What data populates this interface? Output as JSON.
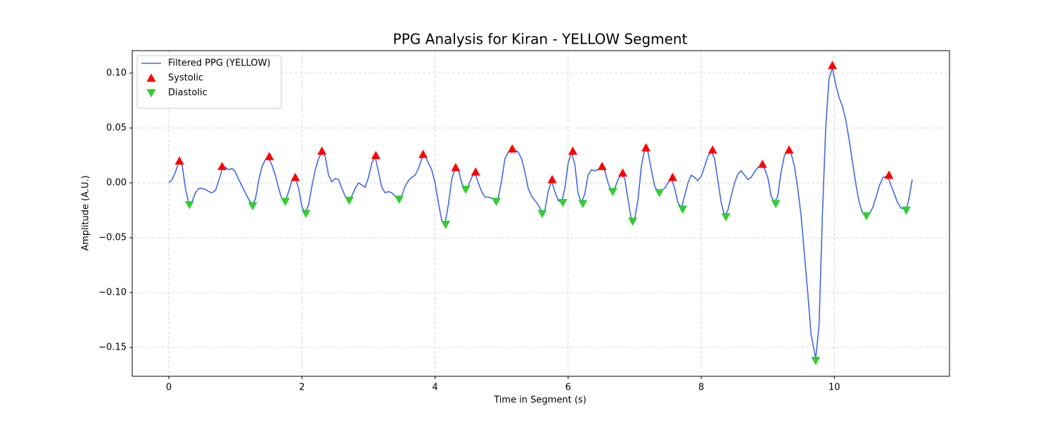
{
  "chart_data": {
    "type": "line",
    "title": "PPG Analysis for Kiran - YELLOW Segment",
    "x_label": "Time in Segment (s)",
    "y_label": "Amplitude (A.U.)",
    "xlim": [
      -0.55,
      11.73
    ],
    "ylim": [
      -0.1763,
      0.1205
    ],
    "xticks": [
      0,
      2,
      4,
      6,
      8,
      10
    ],
    "yticks": [
      {
        "value": -0.15,
        "label": "−0.15"
      },
      {
        "value": -0.1,
        "label": "−0.10"
      },
      {
        "value": -0.05,
        "label": "−0.05"
      },
      {
        "value": 0,
        "label": "0.00"
      },
      {
        "value": 0.05,
        "label": "0.05"
      },
      {
        "value": 0.1,
        "label": "0.10"
      }
    ],
    "grid": true,
    "legend": "upper left",
    "series": [
      {
        "name": "Filtered PPG (YELLOW)",
        "color": "#4169e1",
        "style": "line",
        "x": [
          0,
          0.05,
          0.1,
          0.15,
          0.2,
          0.25,
          0.3,
          0.35,
          0.4,
          0.45,
          0.5,
          0.55,
          0.6,
          0.65,
          0.7,
          0.75,
          0.8,
          0.85,
          0.9,
          0.95,
          1.0,
          1.05,
          1.1,
          1.15,
          1.2,
          1.25,
          1.3,
          1.35,
          1.4,
          1.45,
          1.5,
          1.55,
          1.6,
          1.65,
          1.7,
          1.75,
          1.8,
          1.85,
          1.9,
          1.95,
          2.0,
          2.05,
          2.1,
          2.15,
          2.2,
          2.25,
          2.3,
          2.35,
          2.4,
          2.45,
          2.5,
          2.55,
          2.6,
          2.65,
          2.7,
          2.75,
          2.8,
          2.85,
          2.9,
          2.95,
          3.0,
          3.05,
          3.1,
          3.15,
          3.2,
          3.25,
          3.3,
          3.35,
          3.4,
          3.45,
          3.5,
          3.55,
          3.6,
          3.65,
          3.7,
          3.75,
          3.8,
          3.85,
          3.9,
          3.95,
          4.0,
          4.05,
          4.1,
          4.15,
          4.2,
          4.25,
          4.3,
          4.35,
          4.4,
          4.45,
          4.5,
          4.55,
          4.6,
          4.65,
          4.7,
          4.75,
          4.8,
          4.85,
          4.9,
          4.95,
          5.0,
          5.05,
          5.1,
          5.15,
          5.2,
          5.25,
          5.3,
          5.35,
          5.4,
          5.45,
          5.5,
          5.55,
          5.6,
          5.65,
          5.7,
          5.75,
          5.8,
          5.85,
          5.9,
          5.95,
          6.0,
          6.05,
          6.1,
          6.15,
          6.2,
          6.25,
          6.3,
          6.35,
          6.4,
          6.45,
          6.5,
          6.55,
          6.6,
          6.65,
          6.7,
          6.75,
          6.8,
          6.85,
          6.9,
          6.95,
          7.0,
          7.05,
          7.1,
          7.15,
          7.2,
          7.25,
          7.3,
          7.35,
          7.4,
          7.45,
          7.5,
          7.55,
          7.6,
          7.65,
          7.7,
          7.75,
          7.8,
          7.85,
          7.9,
          7.95,
          8.0,
          8.05,
          8.1,
          8.15,
          8.2,
          8.25,
          8.3,
          8.35,
          8.4,
          8.45,
          8.5,
          8.55,
          8.6,
          8.65,
          8.7,
          8.75,
          8.8,
          8.85,
          8.9,
          8.95,
          9.0,
          9.05,
          9.1,
          9.15,
          9.2,
          9.25,
          9.3,
          9.35,
          9.4,
          9.45,
          9.5,
          9.55,
          9.6,
          9.65,
          9.72,
          9.77,
          9.82,
          9.87,
          9.92,
          9.97,
          10.02,
          10.07,
          10.12,
          10.17,
          10.22,
          10.27,
          10.32,
          10.37,
          10.42,
          10.48,
          10.53,
          10.58,
          10.63,
          10.68,
          10.73,
          10.8,
          10.85,
          10.9,
          10.95,
          11.0,
          11.08,
          11.12,
          11.17
        ],
        "values": [
          0,
          0.003,
          0.01,
          0.019,
          0.016,
          -0.005,
          -0.019,
          -0.017,
          -0.009,
          -0.005,
          -0.005,
          -0.006,
          -0.008,
          -0.009,
          -0.007,
          0.002,
          0.012,
          0.014,
          0.012,
          0.013,
          0.01,
          0.003,
          -0.003,
          -0.009,
          -0.015,
          -0.02,
          -0.015,
          0.002,
          0.015,
          0.021,
          0.023,
          0.016,
          0.007,
          -0.005,
          -0.015,
          -0.017,
          -0.008,
          0.002,
          0.005,
          -0.005,
          -0.022,
          -0.027,
          -0.02,
          -0.003,
          0.012,
          0.022,
          0.028,
          0.024,
          0.007,
          0.001,
          0.004,
          0.003,
          -0.005,
          -0.012,
          -0.016,
          -0.012,
          -0.005,
          0.0,
          -0.002,
          -0.004,
          0.005,
          0.018,
          0.024,
          0.01,
          -0.004,
          -0.009,
          -0.008,
          -0.009,
          -0.012,
          -0.015,
          -0.012,
          -0.003,
          0.002,
          0.005,
          0.007,
          0.013,
          0.022,
          0.025,
          0.018,
          0.012,
          0.0,
          -0.018,
          -0.034,
          -0.037,
          -0.02,
          0.003,
          0.013,
          0.012,
          0.0,
          -0.006,
          -0.003,
          0.005,
          0.009,
          0.0,
          -0.008,
          -0.013,
          -0.013,
          -0.014,
          -0.016,
          -0.014,
          0.002,
          0.022,
          0.028,
          0.03,
          0.03,
          0.028,
          0.022,
          0.01,
          -0.005,
          -0.012,
          -0.016,
          -0.02,
          -0.026,
          -0.025,
          -0.008,
          0.002,
          -0.008,
          -0.016,
          -0.018,
          -0.005,
          0.018,
          0.028,
          0.017,
          -0.01,
          -0.018,
          -0.01,
          0.007,
          0.012,
          0.011,
          0.012,
          0.014,
          0.011,
          0.0,
          -0.008,
          -0.005,
          0.003,
          0.008,
          0.004,
          -0.015,
          -0.034,
          -0.033,
          -0.015,
          0.015,
          0.031,
          0.028,
          0.012,
          -0.003,
          -0.008,
          -0.007,
          -0.005,
          0.0,
          0.004,
          -0.005,
          -0.018,
          -0.023,
          -0.012,
          0.0,
          0.007,
          0.005,
          0.002,
          0.006,
          0.015,
          0.024,
          0.029,
          0.022,
          0.002,
          -0.018,
          -0.03,
          -0.025,
          -0.012,
          0.0,
          0.008,
          0.011,
          0.007,
          0.003,
          0.005,
          0.01,
          0.014,
          0.016,
          0.013,
          0.005,
          -0.012,
          -0.018,
          -0.012,
          0.01,
          0.025,
          0.029,
          0.027,
          0.015,
          -0.005,
          -0.03,
          -0.065,
          -0.1,
          -0.138,
          -0.16,
          -0.13,
          -0.03,
          0.05,
          0.095,
          0.105,
          0.09,
          0.078,
          0.07,
          0.058,
          0.04,
          0.02,
          0.0,
          -0.017,
          -0.027,
          -0.03,
          -0.028,
          -0.022,
          -0.012,
          -0.002,
          0.005,
          0.006,
          -0.002,
          -0.01,
          -0.018,
          -0.023,
          -0.024,
          -0.015,
          0.003
        ]
      },
      {
        "name": "Systolic",
        "color": "#ff0000",
        "style": "marker",
        "marker": "triangle-up",
        "x": [
          0.16,
          0.8,
          1.51,
          1.9,
          2.3,
          3.11,
          3.82,
          4.31,
          4.61,
          5.16,
          5.76,
          6.07,
          6.51,
          6.82,
          7.17,
          7.57,
          8.17,
          8.92,
          9.32,
          9.97,
          10.82
        ],
        "values": [
          0.02,
          0.015,
          0.024,
          0.005,
          0.029,
          0.025,
          0.026,
          0.014,
          0.01,
          0.031,
          0.003,
          0.029,
          0.015,
          0.009,
          0.032,
          0.005,
          0.03,
          0.017,
          0.03,
          0.107,
          0.007
        ]
      },
      {
        "name": "Diastolic",
        "color": "#32cd32",
        "style": "marker",
        "marker": "triangle-down",
        "x": [
          0.31,
          1.26,
          1.75,
          2.06,
          2.71,
          3.46,
          4.16,
          4.46,
          4.92,
          5.61,
          5.92,
          6.22,
          6.67,
          6.97,
          7.37,
          7.72,
          8.37,
          9.12,
          9.72,
          10.48,
          11.08
        ],
        "values": [
          -0.02,
          -0.021,
          -0.017,
          -0.028,
          -0.016,
          -0.015,
          -0.038,
          -0.006,
          -0.017,
          -0.028,
          -0.018,
          -0.019,
          -0.008,
          -0.035,
          -0.009,
          -0.024,
          -0.031,
          -0.019,
          -0.162,
          -0.03,
          -0.025
        ]
      }
    ]
  }
}
